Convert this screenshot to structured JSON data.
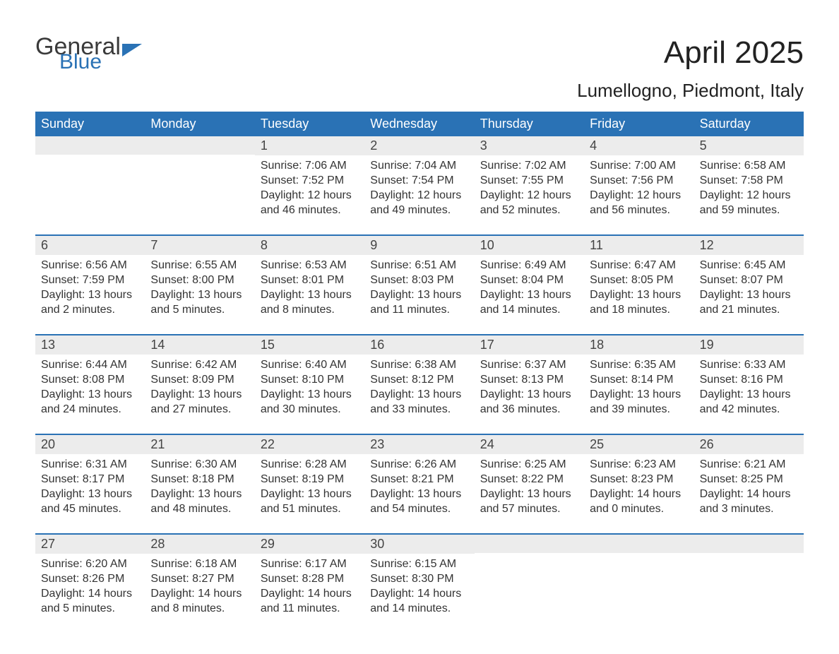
{
  "brand": {
    "general": "General",
    "blue": "Blue"
  },
  "title": "April 2025",
  "location": "Lumellogno, Piedmont, Italy",
  "colors": {
    "header_bg": "#2a72b5",
    "header_text": "#ffffff",
    "daynum_bg": "#ececec",
    "week_border": "#2a72b5",
    "body_text": "#333333",
    "page_bg": "#ffffff"
  },
  "day_names": [
    "Sunday",
    "Monday",
    "Tuesday",
    "Wednesday",
    "Thursday",
    "Friday",
    "Saturday"
  ],
  "weeks": [
    [
      {
        "day": "",
        "sunrise": "",
        "sunset": "",
        "daylight1": "",
        "daylight2": ""
      },
      {
        "day": "",
        "sunrise": "",
        "sunset": "",
        "daylight1": "",
        "daylight2": ""
      },
      {
        "day": "1",
        "sunrise": "Sunrise: 7:06 AM",
        "sunset": "Sunset: 7:52 PM",
        "daylight1": "Daylight: 12 hours",
        "daylight2": "and 46 minutes."
      },
      {
        "day": "2",
        "sunrise": "Sunrise: 7:04 AM",
        "sunset": "Sunset: 7:54 PM",
        "daylight1": "Daylight: 12 hours",
        "daylight2": "and 49 minutes."
      },
      {
        "day": "3",
        "sunrise": "Sunrise: 7:02 AM",
        "sunset": "Sunset: 7:55 PM",
        "daylight1": "Daylight: 12 hours",
        "daylight2": "and 52 minutes."
      },
      {
        "day": "4",
        "sunrise": "Sunrise: 7:00 AM",
        "sunset": "Sunset: 7:56 PM",
        "daylight1": "Daylight: 12 hours",
        "daylight2": "and 56 minutes."
      },
      {
        "day": "5",
        "sunrise": "Sunrise: 6:58 AM",
        "sunset": "Sunset: 7:58 PM",
        "daylight1": "Daylight: 12 hours",
        "daylight2": "and 59 minutes."
      }
    ],
    [
      {
        "day": "6",
        "sunrise": "Sunrise: 6:56 AM",
        "sunset": "Sunset: 7:59 PM",
        "daylight1": "Daylight: 13 hours",
        "daylight2": "and 2 minutes."
      },
      {
        "day": "7",
        "sunrise": "Sunrise: 6:55 AM",
        "sunset": "Sunset: 8:00 PM",
        "daylight1": "Daylight: 13 hours",
        "daylight2": "and 5 minutes."
      },
      {
        "day": "8",
        "sunrise": "Sunrise: 6:53 AM",
        "sunset": "Sunset: 8:01 PM",
        "daylight1": "Daylight: 13 hours",
        "daylight2": "and 8 minutes."
      },
      {
        "day": "9",
        "sunrise": "Sunrise: 6:51 AM",
        "sunset": "Sunset: 8:03 PM",
        "daylight1": "Daylight: 13 hours",
        "daylight2": "and 11 minutes."
      },
      {
        "day": "10",
        "sunrise": "Sunrise: 6:49 AM",
        "sunset": "Sunset: 8:04 PM",
        "daylight1": "Daylight: 13 hours",
        "daylight2": "and 14 minutes."
      },
      {
        "day": "11",
        "sunrise": "Sunrise: 6:47 AM",
        "sunset": "Sunset: 8:05 PM",
        "daylight1": "Daylight: 13 hours",
        "daylight2": "and 18 minutes."
      },
      {
        "day": "12",
        "sunrise": "Sunrise: 6:45 AM",
        "sunset": "Sunset: 8:07 PM",
        "daylight1": "Daylight: 13 hours",
        "daylight2": "and 21 minutes."
      }
    ],
    [
      {
        "day": "13",
        "sunrise": "Sunrise: 6:44 AM",
        "sunset": "Sunset: 8:08 PM",
        "daylight1": "Daylight: 13 hours",
        "daylight2": "and 24 minutes."
      },
      {
        "day": "14",
        "sunrise": "Sunrise: 6:42 AM",
        "sunset": "Sunset: 8:09 PM",
        "daylight1": "Daylight: 13 hours",
        "daylight2": "and 27 minutes."
      },
      {
        "day": "15",
        "sunrise": "Sunrise: 6:40 AM",
        "sunset": "Sunset: 8:10 PM",
        "daylight1": "Daylight: 13 hours",
        "daylight2": "and 30 minutes."
      },
      {
        "day": "16",
        "sunrise": "Sunrise: 6:38 AM",
        "sunset": "Sunset: 8:12 PM",
        "daylight1": "Daylight: 13 hours",
        "daylight2": "and 33 minutes."
      },
      {
        "day": "17",
        "sunrise": "Sunrise: 6:37 AM",
        "sunset": "Sunset: 8:13 PM",
        "daylight1": "Daylight: 13 hours",
        "daylight2": "and 36 minutes."
      },
      {
        "day": "18",
        "sunrise": "Sunrise: 6:35 AM",
        "sunset": "Sunset: 8:14 PM",
        "daylight1": "Daylight: 13 hours",
        "daylight2": "and 39 minutes."
      },
      {
        "day": "19",
        "sunrise": "Sunrise: 6:33 AM",
        "sunset": "Sunset: 8:16 PM",
        "daylight1": "Daylight: 13 hours",
        "daylight2": "and 42 minutes."
      }
    ],
    [
      {
        "day": "20",
        "sunrise": "Sunrise: 6:31 AM",
        "sunset": "Sunset: 8:17 PM",
        "daylight1": "Daylight: 13 hours",
        "daylight2": "and 45 minutes."
      },
      {
        "day": "21",
        "sunrise": "Sunrise: 6:30 AM",
        "sunset": "Sunset: 8:18 PM",
        "daylight1": "Daylight: 13 hours",
        "daylight2": "and 48 minutes."
      },
      {
        "day": "22",
        "sunrise": "Sunrise: 6:28 AM",
        "sunset": "Sunset: 8:19 PM",
        "daylight1": "Daylight: 13 hours",
        "daylight2": "and 51 minutes."
      },
      {
        "day": "23",
        "sunrise": "Sunrise: 6:26 AM",
        "sunset": "Sunset: 8:21 PM",
        "daylight1": "Daylight: 13 hours",
        "daylight2": "and 54 minutes."
      },
      {
        "day": "24",
        "sunrise": "Sunrise: 6:25 AM",
        "sunset": "Sunset: 8:22 PM",
        "daylight1": "Daylight: 13 hours",
        "daylight2": "and 57 minutes."
      },
      {
        "day": "25",
        "sunrise": "Sunrise: 6:23 AM",
        "sunset": "Sunset: 8:23 PM",
        "daylight1": "Daylight: 14 hours",
        "daylight2": "and 0 minutes."
      },
      {
        "day": "26",
        "sunrise": "Sunrise: 6:21 AM",
        "sunset": "Sunset: 8:25 PM",
        "daylight1": "Daylight: 14 hours",
        "daylight2": "and 3 minutes."
      }
    ],
    [
      {
        "day": "27",
        "sunrise": "Sunrise: 6:20 AM",
        "sunset": "Sunset: 8:26 PM",
        "daylight1": "Daylight: 14 hours",
        "daylight2": "and 5 minutes."
      },
      {
        "day": "28",
        "sunrise": "Sunrise: 6:18 AM",
        "sunset": "Sunset: 8:27 PM",
        "daylight1": "Daylight: 14 hours",
        "daylight2": "and 8 minutes."
      },
      {
        "day": "29",
        "sunrise": "Sunrise: 6:17 AM",
        "sunset": "Sunset: 8:28 PM",
        "daylight1": "Daylight: 14 hours",
        "daylight2": "and 11 minutes."
      },
      {
        "day": "30",
        "sunrise": "Sunrise: 6:15 AM",
        "sunset": "Sunset: 8:30 PM",
        "daylight1": "Daylight: 14 hours",
        "daylight2": "and 14 minutes."
      },
      {
        "day": "",
        "sunrise": "",
        "sunset": "",
        "daylight1": "",
        "daylight2": ""
      },
      {
        "day": "",
        "sunrise": "",
        "sunset": "",
        "daylight1": "",
        "daylight2": ""
      },
      {
        "day": "",
        "sunrise": "",
        "sunset": "",
        "daylight1": "",
        "daylight2": ""
      }
    ]
  ]
}
